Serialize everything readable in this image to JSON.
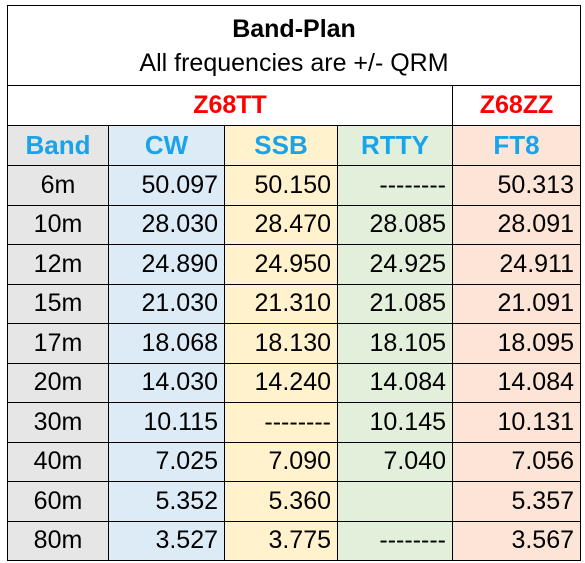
{
  "title": "Band-Plan",
  "subtitle": "All frequencies are +/- QRM",
  "callsigns": {
    "left": "Z68TT",
    "right": "Z68ZZ"
  },
  "colors": {
    "callsign": "#ff0000",
    "header": "#1aa3e8",
    "band_bg": "#e7e6e6",
    "cw_bg": "#ddebf7",
    "ssb_bg": "#fff2cc",
    "rtty_bg": "#e2efda",
    "ft8_bg": "#fce4d6"
  },
  "headers": [
    "Band",
    "CW",
    "SSB",
    "RTTY",
    "FT8"
  ],
  "rows": [
    {
      "band": "6m",
      "cw": "50.097",
      "ssb": "50.150",
      "rtty": "--------",
      "ft8": "50.313"
    },
    {
      "band": "10m",
      "cw": "28.030",
      "ssb": "28.470",
      "rtty": "28.085",
      "ft8": "28.091"
    },
    {
      "band": "12m",
      "cw": "24.890",
      "ssb": "24.950",
      "rtty": "24.925",
      "ft8": "24.911"
    },
    {
      "band": "15m",
      "cw": "21.030",
      "ssb": "21.310",
      "rtty": "21.085",
      "ft8": "21.091"
    },
    {
      "band": "17m",
      "cw": "18.068",
      "ssb": "18.130",
      "rtty": "18.105",
      "ft8": "18.095"
    },
    {
      "band": "20m",
      "cw": "14.030",
      "ssb": "14.240",
      "rtty": "14.084",
      "ft8": "14.084"
    },
    {
      "band": "30m",
      "cw": "10.115",
      "ssb": "--------",
      "rtty": "10.145",
      "ft8": "10.131"
    },
    {
      "band": "40m",
      "cw": "7.025",
      "ssb": "7.090",
      "rtty": "7.040",
      "ft8": "7.056"
    },
    {
      "band": "60m",
      "cw": "5.352",
      "ssb": "5.360",
      "rtty": "",
      "ft8": "5.357"
    },
    {
      "band": "80m",
      "cw": "3.527",
      "ssb": "3.775",
      "rtty": "--------",
      "ft8": "3.567"
    }
  ]
}
